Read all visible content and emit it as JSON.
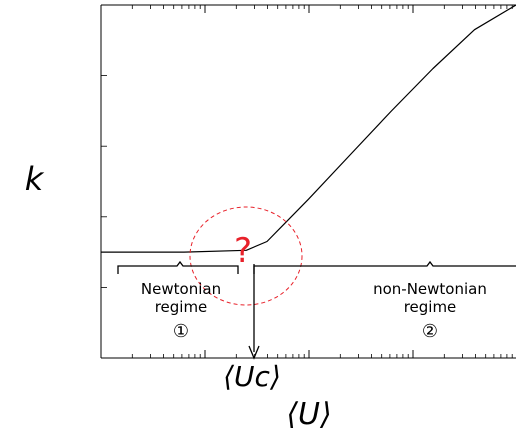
{
  "chart_data": {
    "type": "line",
    "xlabel": "⟨U⟩",
    "ylabel": "k",
    "x_scale": "log",
    "xlim": [
      0,
      1
    ],
    "ylim": [
      0,
      1
    ],
    "grid": false,
    "series": [
      {
        "x": [
          0.0,
          0.2,
          0.35,
          0.4,
          0.45,
          0.5,
          0.6,
          0.7,
          0.8,
          0.9,
          1.0
        ],
        "values": [
          0.3,
          0.3,
          0.305,
          0.33,
          0.39,
          0.45,
          0.575,
          0.7,
          0.82,
          0.93,
          1.0
        ]
      }
    ],
    "annotations": {
      "question_mark": "?",
      "critical_label": "⟨Uc⟩",
      "critical_x": 0.39,
      "regime_1": {
        "line1": "Newtonian",
        "line2": "regime",
        "marker": "①"
      },
      "regime_2": {
        "line1": "non-Newtonian",
        "line2": "regime",
        "marker": "②"
      }
    },
    "colors": {
      "curve": "#000000",
      "axes": "#000000",
      "annotation_red": "#e8212a"
    }
  }
}
